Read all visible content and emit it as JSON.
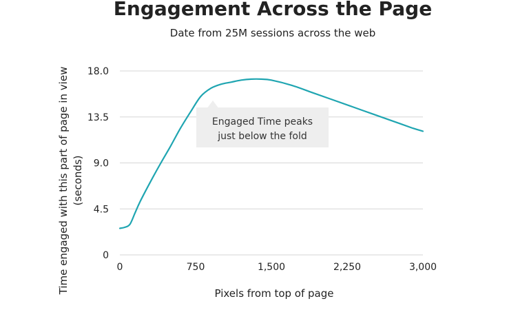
{
  "chart_data": {
    "type": "line",
    "title": "Engagement Across the Page",
    "subtitle": "Date from 25M sessions across the web",
    "xlabel": "Pixels from top of page",
    "ylabel_lines": [
      "Time engaged with this part of page in view",
      "(seconds)"
    ],
    "xlim": [
      0,
      3000
    ],
    "ylim": [
      0,
      18
    ],
    "xticks": [
      0,
      750,
      1500,
      2250,
      3000
    ],
    "xtick_labels": [
      "0",
      "750",
      "1,500",
      "2,250",
      "3,000"
    ],
    "yticks": [
      0,
      4.5,
      9,
      13.5,
      18
    ],
    "ytick_labels": [
      "0",
      "4.5",
      "9.0",
      "13.5",
      "18.0"
    ],
    "grid": true,
    "line_color": "#1fa5b1",
    "series": [
      {
        "name": "",
        "x": [
          0,
          50,
          100,
          150,
          200,
          300,
          400,
          500,
          600,
          700,
          800,
          900,
          1000,
          1100,
          1200,
          1300,
          1400,
          1500,
          1700,
          1900,
          2100,
          2300,
          2500,
          2700,
          2900,
          3000
        ],
        "y": [
          2.6,
          2.7,
          3.0,
          4.1,
          5.2,
          7.1,
          8.9,
          10.6,
          12.4,
          14.0,
          15.5,
          16.3,
          16.7,
          16.9,
          17.1,
          17.2,
          17.2,
          17.1,
          16.6,
          15.9,
          15.2,
          14.5,
          13.8,
          13.1,
          12.4,
          12.1
        ]
      }
    ],
    "annotation": {
      "text_lines": [
        "Engaged Time peaks",
        "just below the fold"
      ],
      "background": "#eeeeee"
    }
  }
}
